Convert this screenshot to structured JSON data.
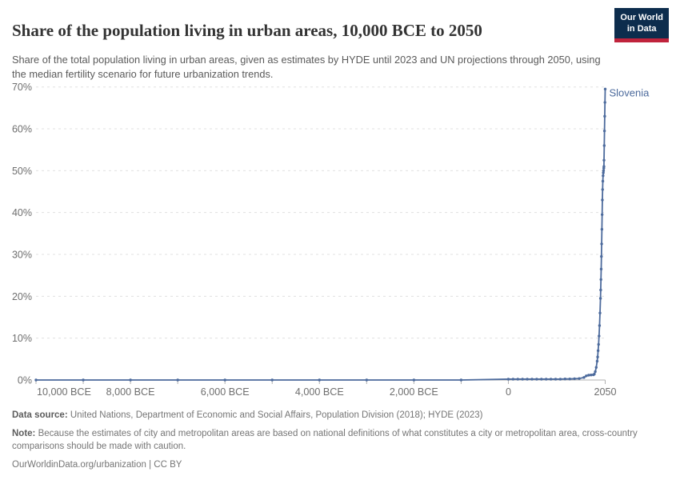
{
  "header": {
    "title": "Share of the population living in urban areas, 10,000 BCE to 2050",
    "subtitle": "Share of the total population living in urban areas, given as estimates by HYDE until 2023 and UN projections through 2050, using the median fertility scenario for future urbanization trends.",
    "logo": {
      "line1": "Our World",
      "line2": "in Data",
      "bg_color": "#0d2d4d",
      "accent_color": "#c0233c"
    }
  },
  "chart_data": {
    "type": "line",
    "title": "Share of the population living in urban areas, 10,000 BCE to 2050",
    "entity_label": "Slovenia",
    "line_color": "#4c6a9c",
    "grid": true,
    "legend_position": "end-of-line",
    "x_axis": {
      "range": [
        -10000,
        2050
      ],
      "tick_years": [
        -10000,
        -9000,
        -8000,
        -7000,
        -6000,
        -5000,
        -4000,
        -3000,
        -2000,
        -1000,
        0,
        2050
      ],
      "labeled_ticks": [
        {
          "year": -10000,
          "label": "10,000 BCE"
        },
        {
          "year": -8000,
          "label": "8,000 BCE"
        },
        {
          "year": -6000,
          "label": "6,000 BCE"
        },
        {
          "year": -4000,
          "label": "4,000 BCE"
        },
        {
          "year": -2000,
          "label": "2,000 BCE"
        },
        {
          "year": 0,
          "label": "0"
        },
        {
          "year": 2050,
          "label": "2050"
        }
      ]
    },
    "y_axis": {
      "range": [
        0,
        70
      ],
      "unit": "%",
      "ticks": [
        {
          "value": 0,
          "label": "0%"
        },
        {
          "value": 10,
          "label": "10%"
        },
        {
          "value": 20,
          "label": "20%"
        },
        {
          "value": 30,
          "label": "30%"
        },
        {
          "value": 40,
          "label": "40%"
        },
        {
          "value": 50,
          "label": "50%"
        },
        {
          "value": 60,
          "label": "60%"
        },
        {
          "value": 70,
          "label": "70%"
        }
      ]
    },
    "series": [
      {
        "name": "Slovenia",
        "points": [
          [
            -10000,
            0
          ],
          [
            -9000,
            0
          ],
          [
            -8000,
            0
          ],
          [
            -7000,
            0
          ],
          [
            -6000,
            0
          ],
          [
            -5000,
            0
          ],
          [
            -4000,
            0
          ],
          [
            -3000,
            0
          ],
          [
            -2000,
            0
          ],
          [
            -1000,
            0
          ],
          [
            0,
            0.2
          ],
          [
            100,
            0.2
          ],
          [
            200,
            0.2
          ],
          [
            300,
            0.2
          ],
          [
            400,
            0.2
          ],
          [
            500,
            0.2
          ],
          [
            600,
            0.2
          ],
          [
            700,
            0.2
          ],
          [
            800,
            0.2
          ],
          [
            900,
            0.2
          ],
          [
            1000,
            0.2
          ],
          [
            1100,
            0.2
          ],
          [
            1200,
            0.25
          ],
          [
            1300,
            0.25
          ],
          [
            1400,
            0.3
          ],
          [
            1500,
            0.35
          ],
          [
            1600,
            0.6
          ],
          [
            1650,
            1.0
          ],
          [
            1700,
            1.15
          ],
          [
            1750,
            1.2
          ],
          [
            1800,
            1.25
          ],
          [
            1820,
            1.4
          ],
          [
            1840,
            2.0
          ],
          [
            1860,
            3.0
          ],
          [
            1880,
            4.5
          ],
          [
            1890,
            5.5
          ],
          [
            1900,
            7.0
          ],
          [
            1910,
            8.5
          ],
          [
            1920,
            10.5
          ],
          [
            1930,
            13
          ],
          [
            1940,
            16
          ],
          [
            1950,
            19.5
          ],
          [
            1955,
            21.5
          ],
          [
            1960,
            24
          ],
          [
            1965,
            26.5
          ],
          [
            1970,
            29.5
          ],
          [
            1975,
            32.5
          ],
          [
            1980,
            36
          ],
          [
            1985,
            39.5
          ],
          [
            1990,
            43
          ],
          [
            1995,
            45.5
          ],
          [
            2000,
            47.5
          ],
          [
            2005,
            48.8
          ],
          [
            2010,
            49.5
          ],
          [
            2015,
            50
          ],
          [
            2020,
            50.6
          ],
          [
            2023,
            51
          ],
          [
            2025,
            52.5
          ],
          [
            2030,
            56
          ],
          [
            2035,
            59.5
          ],
          [
            2040,
            63
          ],
          [
            2045,
            66.3
          ],
          [
            2050,
            69.5
          ]
        ]
      }
    ]
  },
  "footer": {
    "data_source_label": "Data source:",
    "data_source_text": "United Nations, Department of Economic and Social Affairs, Population Division (2018); HYDE (2023)",
    "note_label": "Note:",
    "note_text": "Because the estimates of city and metropolitan areas are based on national definitions of what constitutes a city or metropolitan area, cross-country comparisons should be made with caution.",
    "link_text": "OurWorldinData.org/urbanization",
    "license_text": "| CC BY"
  },
  "colors": {
    "line": "#4c6a9c",
    "gridline": "#e0e0e0",
    "axis": "#b0b0b0",
    "tick_label": "#6e6e6e",
    "title": "#333333",
    "subtitle": "#5a5a5a",
    "footer": "#757575"
  }
}
